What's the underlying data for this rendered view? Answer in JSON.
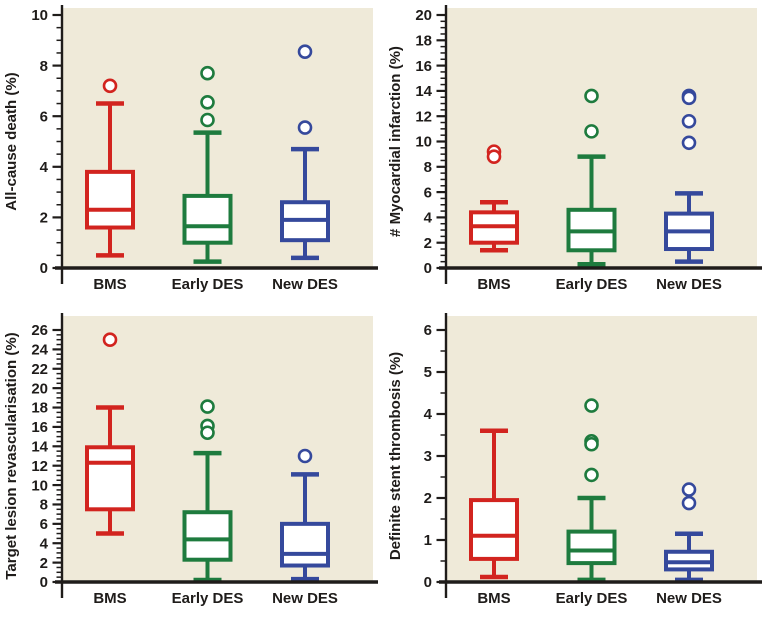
{
  "figure": {
    "background_color": "#ffffff",
    "plot_background_color": "#efead9",
    "axis_color": "#1f1c1a",
    "text_color": "#1f1c1a",
    "categories": [
      "BMS",
      "Early DES",
      "New DES"
    ],
    "series_colors": {
      "BMS": "#d2241f",
      "Early DES": "#1e7b3e",
      "New DES": "#35499c"
    }
  },
  "chart_data": [
    {
      "type": "box",
      "position": "top-left",
      "ylabel": "All-cause death (%)",
      "ylim": [
        0,
        10
      ],
      "ytick_step": 2,
      "minor_tick_step": 0.5,
      "categories": [
        "BMS",
        "Early DES",
        "New DES"
      ],
      "series": [
        {
          "name": "BMS",
          "color": "#d2241f",
          "whisker_low": 0.5,
          "q1": 1.6,
          "median": 2.3,
          "q3": 3.8,
          "whisker_high": 6.5,
          "outliers": [
            7.2
          ]
        },
        {
          "name": "Early DES",
          "color": "#1e7b3e",
          "whisker_low": 0.25,
          "q1": 1.0,
          "median": 1.65,
          "q3": 2.85,
          "whisker_high": 5.35,
          "outliers": [
            7.7,
            6.55,
            5.85
          ]
        },
        {
          "name": "New DES",
          "color": "#35499c",
          "whisker_low": 0.4,
          "q1": 1.1,
          "median": 1.9,
          "q3": 2.6,
          "whisker_high": 4.7,
          "outliers": [
            8.55,
            5.55
          ]
        }
      ]
    },
    {
      "type": "box",
      "position": "top-right",
      "ylabel": "# Myocardial infarction (%)",
      "ylim": [
        0,
        20
      ],
      "ytick_step": 2,
      "minor_tick_step": 0.5,
      "categories": [
        "BMS",
        "Early DES",
        "New DES"
      ],
      "series": [
        {
          "name": "BMS",
          "color": "#d2241f",
          "whisker_low": 1.4,
          "q1": 2.0,
          "median": 3.3,
          "q3": 4.4,
          "whisker_high": 5.2,
          "outliers": [
            9.2,
            8.8
          ]
        },
        {
          "name": "Early DES",
          "color": "#1e7b3e",
          "whisker_low": 0.3,
          "q1": 1.4,
          "median": 2.9,
          "q3": 4.6,
          "whisker_high": 8.8,
          "outliers": [
            13.6,
            10.8
          ]
        },
        {
          "name": "New DES",
          "color": "#35499c",
          "whisker_low": 0.5,
          "q1": 1.5,
          "median": 2.9,
          "q3": 4.3,
          "whisker_high": 5.9,
          "outliers": [
            13.6,
            13.45,
            11.6,
            9.9
          ]
        }
      ]
    },
    {
      "type": "box",
      "position": "bottom-left",
      "ylabel": "Target lesion revascularisation  (%)",
      "ylim": [
        0,
        26
      ],
      "ytick_step": 2,
      "minor_tick_step": 0.5,
      "categories": [
        "BMS",
        "Early DES",
        "New DES"
      ],
      "series": [
        {
          "name": "BMS",
          "color": "#d2241f",
          "whisker_low": 5.0,
          "q1": 7.5,
          "median": 12.3,
          "q3": 13.9,
          "whisker_high": 18.0,
          "outliers": [
            25.0
          ]
        },
        {
          "name": "Early DES",
          "color": "#1e7b3e",
          "whisker_low": 0.2,
          "q1": 2.3,
          "median": 4.4,
          "q3": 7.2,
          "whisker_high": 13.3,
          "outliers": [
            18.1,
            16.1,
            15.4
          ]
        },
        {
          "name": "New DES",
          "color": "#35499c",
          "whisker_low": 0.3,
          "q1": 1.7,
          "median": 2.9,
          "q3": 6.0,
          "whisker_high": 11.1,
          "outliers": [
            13.0
          ]
        }
      ]
    },
    {
      "type": "box",
      "position": "bottom-right",
      "ylabel": "Definite stent thrombosis (%)",
      "ylim": [
        0,
        6
      ],
      "ytick_step": 1,
      "minor_tick_step": 0.5,
      "categories": [
        "BMS",
        "Early DES",
        "New DES"
      ],
      "series": [
        {
          "name": "BMS",
          "color": "#d2241f",
          "whisker_low": 0.12,
          "q1": 0.55,
          "median": 1.1,
          "q3": 1.95,
          "whisker_high": 3.6,
          "outliers": []
        },
        {
          "name": "Early DES",
          "color": "#1e7b3e",
          "whisker_low": 0.05,
          "q1": 0.45,
          "median": 0.75,
          "q3": 1.2,
          "whisker_high": 2.0,
          "outliers": [
            4.2,
            3.35,
            3.28,
            2.55
          ]
        },
        {
          "name": "New DES",
          "color": "#35499c",
          "whisker_low": 0.05,
          "q1": 0.3,
          "median": 0.47,
          "q3": 0.72,
          "whisker_high": 1.15,
          "outliers": [
            2.2,
            1.88
          ]
        }
      ]
    }
  ]
}
